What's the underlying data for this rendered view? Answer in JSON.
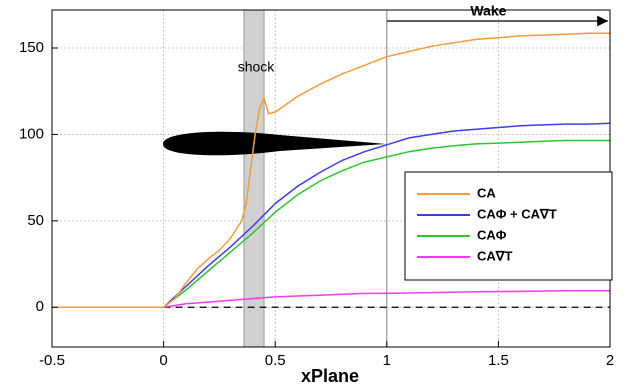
{
  "chart_data": {
    "type": "line",
    "x_label": "xPlane",
    "xlim": [
      -0.5,
      2
    ],
    "xticks": [
      -0.5,
      0,
      0.5,
      1,
      1.5,
      2
    ],
    "ylim": [
      -23,
      172
    ],
    "yticks": [
      0,
      50,
      100,
      150
    ],
    "grid": true,
    "legend": "lower right",
    "series": [
      {
        "name": "CA",
        "color": "#f39c3a",
        "x": [
          -0.5,
          0,
          0.05,
          0.1,
          0.15,
          0.2,
          0.25,
          0.3,
          0.35,
          0.37,
          0.39,
          0.41,
          0.43,
          0.45,
          0.47,
          0.5,
          0.6,
          0.7,
          0.8,
          0.9,
          1.0,
          1.1,
          1.2,
          1.3,
          1.4,
          1.5,
          1.6,
          1.7,
          1.8,
          1.9,
          2.0
        ],
        "values": [
          0,
          0,
          5,
          14,
          22,
          28,
          33,
          40,
          50,
          60,
          80,
          100,
          115,
          121,
          112,
          113,
          122,
          129,
          135,
          140,
          145,
          148,
          151,
          153,
          155,
          156,
          157,
          157.5,
          158,
          158.5,
          158.5
        ]
      },
      {
        "name": "CAΦ + CA∇T",
        "color": "#3c3cf0",
        "x": [
          -0.5,
          0,
          0.1,
          0.2,
          0.3,
          0.4,
          0.5,
          0.6,
          0.7,
          0.8,
          0.9,
          1.0,
          1.1,
          1.2,
          1.3,
          1.4,
          1.5,
          1.6,
          1.7,
          1.8,
          1.9,
          2.0
        ],
        "values": [
          0,
          0,
          12,
          24,
          35,
          47,
          60,
          70,
          78,
          85,
          90,
          94,
          98,
          100,
          102,
          103,
          104,
          105,
          105.5,
          106,
          106,
          106.5
        ]
      },
      {
        "name": "CAΦ",
        "color": "#2ec42e",
        "x": [
          -0.5,
          0,
          0.1,
          0.2,
          0.3,
          0.4,
          0.5,
          0.6,
          0.7,
          0.8,
          0.9,
          1.0,
          1.1,
          1.2,
          1.3,
          1.4,
          1.5,
          1.6,
          1.7,
          1.8,
          1.9,
          2.0
        ],
        "values": [
          0,
          0,
          10,
          21,
          32,
          43,
          55,
          65,
          73,
          79,
          84,
          87,
          90,
          92,
          93.5,
          94.5,
          95,
          95.5,
          96,
          96.5,
          96.5,
          96.5
        ]
      },
      {
        "name": "CA∇T",
        "color": "#f03cf0",
        "x": [
          -0.5,
          0,
          0.1,
          0.2,
          0.3,
          0.4,
          0.5,
          0.6,
          0.7,
          0.8,
          0.9,
          1.0,
          1.2,
          1.4,
          1.6,
          1.8,
          2.0
        ],
        "values": [
          0,
          0,
          2,
          3,
          4,
          5,
          6,
          6.5,
          7,
          7.5,
          8,
          8,
          8.5,
          9,
          9.2,
          9.5,
          9.5
        ]
      }
    ],
    "reference_line": {
      "y": 0,
      "x": [
        0,
        2
      ]
    },
    "annotations": [
      {
        "text": "shock",
        "x": [
          0.36,
          0.45
        ]
      },
      {
        "text": "Wake",
        "x": [
          1,
          2
        ]
      }
    ]
  }
}
